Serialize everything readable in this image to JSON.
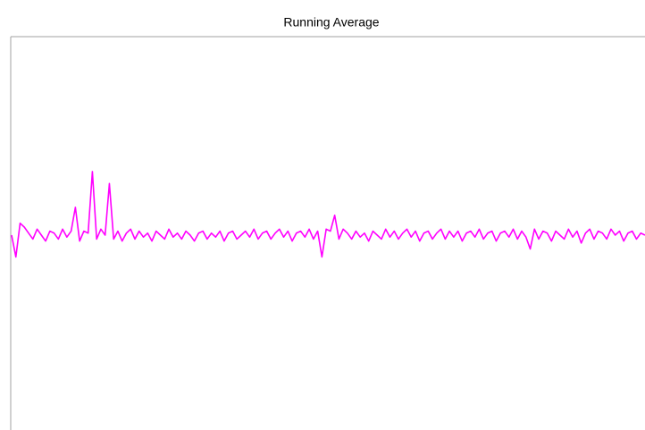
{
  "chart_data": {
    "type": "line",
    "title": "Running Average",
    "color": "#ff00ff",
    "ylim": [
      -1,
      1
    ],
    "values": [
      0.0,
      -0.11,
      0.06,
      0.04,
      0.01,
      -0.02,
      0.03,
      0.0,
      -0.03,
      0.02,
      0.01,
      -0.02,
      0.03,
      -0.01,
      0.02,
      0.14,
      -0.03,
      0.02,
      0.01,
      0.32,
      -0.02,
      0.03,
      0.0,
      0.26,
      -0.02,
      0.02,
      -0.03,
      0.01,
      0.03,
      -0.02,
      0.02,
      -0.01,
      0.01,
      -0.03,
      0.02,
      0.0,
      -0.02,
      0.03,
      -0.01,
      0.01,
      -0.02,
      0.02,
      0.0,
      -0.03,
      0.01,
      0.02,
      -0.02,
      0.01,
      -0.01,
      0.02,
      -0.03,
      0.01,
      0.02,
      -0.02,
      0.0,
      0.02,
      -0.01,
      0.03,
      -0.02,
      0.01,
      0.02,
      -0.02,
      0.01,
      0.03,
      -0.01,
      0.02,
      -0.03,
      0.01,
      0.02,
      -0.01,
      0.03,
      -0.02,
      0.02,
      -0.11,
      0.03,
      0.02,
      0.1,
      -0.02,
      0.03,
      0.01,
      -0.02,
      0.02,
      -0.01,
      0.01,
      -0.03,
      0.02,
      0.0,
      -0.02,
      0.03,
      -0.01,
      0.02,
      -0.02,
      0.01,
      0.03,
      -0.01,
      0.02,
      -0.03,
      0.01,
      0.02,
      -0.02,
      0.01,
      0.03,
      -0.02,
      0.02,
      -0.01,
      0.02,
      -0.03,
      0.01,
      0.02,
      -0.01,
      0.03,
      -0.02,
      0.01,
      0.02,
      -0.03,
      0.01,
      0.02,
      -0.01,
      0.03,
      -0.02,
      0.02,
      -0.01,
      -0.07,
      0.03,
      -0.02,
      0.02,
      0.01,
      -0.03,
      0.02,
      0.0,
      -0.02,
      0.03,
      -0.01,
      0.02,
      -0.04,
      0.01,
      0.03,
      -0.02,
      0.02,
      0.01,
      -0.02,
      0.03,
      0.0,
      0.02,
      -0.03,
      0.01,
      0.02,
      -0.02,
      0.01,
      0.0
    ]
  }
}
